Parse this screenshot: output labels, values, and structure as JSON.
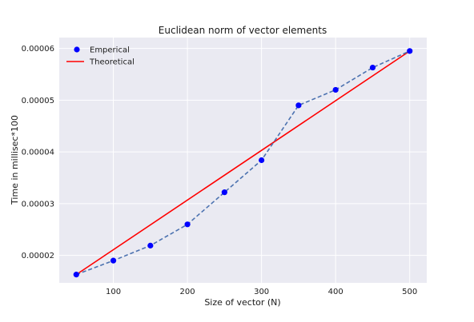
{
  "chart_data": {
    "type": "line",
    "title": "Euclidean norm of vector elements",
    "xlabel": "Size of vector (N)",
    "ylabel": "Time in millisec*100",
    "xlim": [
      27,
      523
    ],
    "ylim": [
      1.47e-05,
      6.21e-05
    ],
    "grid": true,
    "legend_position": "top-left",
    "x_ticks": [
      100,
      200,
      300,
      400,
      500
    ],
    "x_tick_labels": [
      "100",
      "200",
      "300",
      "400",
      "500"
    ],
    "y_ticks": [
      2e-05,
      3e-05,
      4e-05,
      5e-05,
      6e-05
    ],
    "y_tick_labels": [
      "0.00002",
      "0.00003",
      "0.00004",
      "0.00005",
      "0.00006"
    ],
    "x": [
      50,
      100,
      150,
      200,
      250,
      300,
      350,
      400,
      450,
      500
    ],
    "series": [
      {
        "name": "Emperical",
        "style": "markers-with-dashed-line",
        "marker_color": "#0000ff",
        "line_color": "#4c72b0",
        "values": [
          1.63e-05,
          1.9e-05,
          2.19e-05,
          2.6e-05,
          3.22e-05,
          3.84e-05,
          4.9e-05,
          5.2e-05,
          5.63e-05,
          5.95e-05
        ]
      },
      {
        "name": "Theoretical",
        "style": "solid-line",
        "line_color": "#ff0000",
        "x": [
          50,
          500
        ],
        "values": [
          1.63e-05,
          5.95e-05
        ]
      }
    ],
    "colors": {
      "plot_background": "#eaeaf2",
      "grid": "#ffffff"
    }
  }
}
